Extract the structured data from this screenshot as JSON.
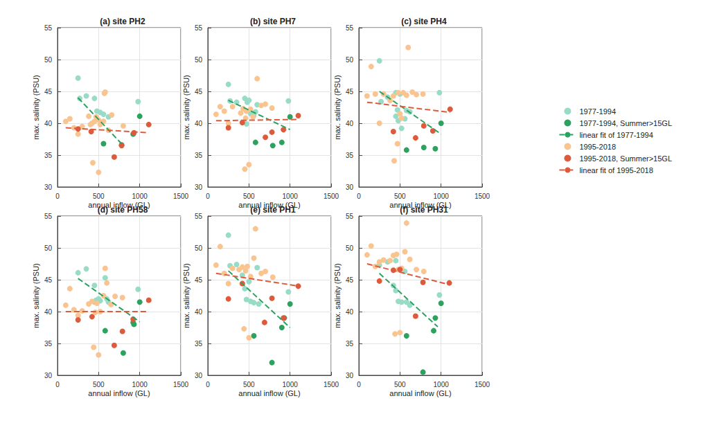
{
  "chart_data": [
    {
      "type": "scatter",
      "title": "(a) site PH2",
      "x_label": "annual inflow (GL)",
      "y_label": "max. salinity (PSU)",
      "xlim": [
        0,
        1500
      ],
      "ylim": [
        30,
        55
      ],
      "xticks": [
        0,
        500,
        1000,
        1500
      ],
      "yticks": [
        30,
        35,
        40,
        45,
        50,
        55
      ],
      "grid": true,
      "legend": "right",
      "series": [
        {
          "name": "1977-1994",
          "type": "scatter",
          "marker": "circle",
          "color": "#98dbc6",
          "x": [
            250,
            270,
            350,
            450,
            480,
            520,
            560,
            620,
            980
          ],
          "values": [
            47.1,
            43.9,
            44.3,
            43.9,
            41.9,
            41.7,
            41.4,
            41.0,
            43.4
          ]
        },
        {
          "name": "1977-1994, Summer>15GL",
          "type": "scatter",
          "marker": "circle",
          "color": "#2ca25f",
          "x": [
            560,
            780,
            920,
            1000
          ],
          "values": [
            36.8,
            36.6,
            38.3,
            41.1
          ]
        },
        {
          "name": "linear fit of 1977-1994",
          "type": "line",
          "line_style": "dashed",
          "color": "#2ca25f",
          "x": [
            250,
            800
          ],
          "values": [
            44.0,
            36.5
          ]
        },
        {
          "name": "1995-2018",
          "type": "scatter",
          "marker": "circle",
          "color": "#f9c48f",
          "x": [
            100,
            150,
            200,
            250,
            300,
            380,
            400,
            420,
            430,
            450,
            470,
            500,
            500,
            520,
            560,
            570,
            580,
            620,
            660,
            800
          ],
          "values": [
            40.3,
            40.7,
            39.3,
            38.3,
            39.5,
            41.1,
            39.8,
            40.0,
            33.8,
            40.3,
            41.0,
            40.5,
            32.3,
            39.8,
            40.3,
            44.7,
            44.9,
            38.9,
            41.3,
            39.6
          ]
        },
        {
          "name": "1995-2018, Summer>15GL",
          "type": "scatter",
          "marker": "circle",
          "color": "#de5a3c",
          "x": [
            250,
            410,
            690,
            780,
            930,
            1110
          ],
          "values": [
            39.1,
            38.7,
            34.7,
            36.5,
            38.5,
            39.8
          ]
        },
        {
          "name": "linear fit of 1995-2018",
          "type": "line",
          "line_style": "dashed",
          "color": "#de5a3c",
          "x": [
            100,
            1110
          ],
          "values": [
            39.3,
            38.5
          ]
        }
      ]
    },
    {
      "type": "scatter",
      "title": "(b) site PH7",
      "x_label": "annual inflow (GL)",
      "y_label": "max. salinity (PSU)",
      "xlim": [
        0,
        1500
      ],
      "ylim": [
        30,
        55
      ],
      "xticks": [
        0,
        500,
        1000,
        1500
      ],
      "yticks": [
        30,
        35,
        40,
        45,
        50,
        55
      ],
      "grid": true,
      "series": [
        {
          "name": "1977-1994",
          "type": "scatter",
          "marker": "circle",
          "color": "#98dbc6",
          "x": [
            250,
            270,
            350,
            450,
            470,
            480,
            500,
            520,
            560,
            580,
            600,
            980
          ],
          "values": [
            46.1,
            43.5,
            43.3,
            43.9,
            39.9,
            43.3,
            43.6,
            41.5,
            41.2,
            41.8,
            42.9,
            43.5
          ]
        },
        {
          "name": "1977-1994, Summer>15GL",
          "type": "scatter",
          "marker": "circle",
          "color": "#2ca25f",
          "x": [
            580,
            790,
            900,
            1000
          ],
          "values": [
            37.0,
            36.5,
            37.0,
            41.0
          ]
        },
        {
          "name": "linear fit of 1977-1994",
          "type": "line",
          "line_style": "dashed",
          "color": "#2ca25f",
          "x": [
            250,
            1000
          ],
          "values": [
            43.6,
            39.0
          ]
        },
        {
          "name": "1995-2018",
          "type": "scatter",
          "marker": "circle",
          "color": "#f9c48f",
          "x": [
            100,
            150,
            200,
            250,
            300,
            400,
            430,
            450,
            460,
            470,
            500,
            520,
            550,
            600,
            650,
            700,
            780
          ],
          "values": [
            41.4,
            42.6,
            41.9,
            40.0,
            42.6,
            41.6,
            42.3,
            32.8,
            40.8,
            41.9,
            33.5,
            42.2,
            41.0,
            47.0,
            42.8,
            43.0,
            42.4
          ]
        },
        {
          "name": "1995-2018, Summer>15GL",
          "type": "scatter",
          "marker": "circle",
          "color": "#de5a3c",
          "x": [
            250,
            420,
            700,
            780,
            920,
            1100
          ],
          "values": [
            39.3,
            40.1,
            37.8,
            38.6,
            39.0,
            41.2
          ]
        },
        {
          "name": "linear fit of 1995-2018",
          "type": "line",
          "line_style": "dashed",
          "color": "#de5a3c",
          "x": [
            100,
            1110
          ],
          "values": [
            40.4,
            40.6
          ]
        }
      ]
    },
    {
      "type": "scatter",
      "title": "(c) site PH4",
      "x_label": "annual inflow (GL)",
      "y_label": "max. salinity (PSU)",
      "xlim": [
        0,
        1500
      ],
      "ylim": [
        30,
        55
      ],
      "xticks": [
        0,
        500,
        1000,
        1500
      ],
      "yticks": [
        30,
        35,
        40,
        45,
        50,
        55
      ],
      "grid": true,
      "series": [
        {
          "name": "1977-1994",
          "type": "scatter",
          "marker": "circle",
          "color": "#98dbc6",
          "x": [
            250,
            270,
            350,
            450,
            450,
            470,
            480,
            500,
            520,
            560,
            580,
            620,
            980
          ],
          "values": [
            49.8,
            43.4,
            44.1,
            44.8,
            41.1,
            42.1,
            40.4,
            44.6,
            39.2,
            40.7,
            42.0,
            41.8,
            44.8
          ]
        },
        {
          "name": "1977-1994, Summer>15GL",
          "type": "scatter",
          "marker": "circle",
          "color": "#2ca25f",
          "x": [
            580,
            790,
            930,
            1000
          ],
          "values": [
            35.8,
            36.2,
            36.0,
            40.0
          ]
        },
        {
          "name": "linear fit of 1977-1994",
          "type": "line",
          "line_style": "dashed",
          "color": "#2ca25f",
          "x": [
            250,
            1000
          ],
          "values": [
            45.0,
            38.3
          ]
        },
        {
          "name": "1995-2018",
          "type": "scatter",
          "marker": "circle",
          "color": "#f9c48f",
          "x": [
            100,
            150,
            200,
            250,
            300,
            380,
            420,
            430,
            470,
            480,
            500,
            520,
            540,
            580,
            600,
            650,
            700,
            780
          ],
          "values": [
            44.3,
            48.9,
            44.6,
            40.0,
            44.6,
            43.6,
            44.3,
            34.1,
            36.8,
            44.8,
            41.5,
            40.8,
            44.8,
            44.4,
            51.9,
            44.9,
            44.5,
            44.6
          ]
        },
        {
          "name": "1995-2018, Summer>15GL",
          "type": "scatter",
          "marker": "circle",
          "color": "#de5a3c",
          "x": [
            420,
            690,
            790,
            900,
            1110
          ],
          "values": [
            38.7,
            37.7,
            39.6,
            38.8,
            42.2
          ]
        },
        {
          "name": "linear fit of 1995-2018",
          "type": "line",
          "line_style": "dashed",
          "color": "#de5a3c",
          "x": [
            100,
            1110
          ],
          "values": [
            43.3,
            41.7
          ]
        }
      ]
    },
    {
      "type": "scatter",
      "title": "(d) site PH58",
      "x_label": "annual inflow (GL)",
      "y_label": "max. salinity (PSU)",
      "xlim": [
        0,
        1500
      ],
      "ylim": [
        30,
        55
      ],
      "xticks": [
        0,
        500,
        1000,
        1500
      ],
      "yticks": [
        30,
        35,
        40,
        45,
        50,
        55
      ],
      "grid": true,
      "series": [
        {
          "name": "1977-1994",
          "type": "scatter",
          "marker": "circle",
          "color": "#98dbc6",
          "x": [
            250,
            350,
            450,
            450,
            470,
            500,
            520,
            580,
            600,
            620,
            980
          ],
          "values": [
            46.1,
            46.7,
            44.1,
            41.5,
            41.8,
            42.0,
            41.7,
            45.3,
            42.0,
            41.5,
            43.5
          ]
        },
        {
          "name": "1977-1994, Summer>15GL",
          "type": "scatter",
          "marker": "circle",
          "color": "#2ca25f",
          "x": [
            580,
            800,
            920,
            930,
            1000
          ],
          "values": [
            37.0,
            33.5,
            38.3,
            38.0,
            41.5
          ]
        },
        {
          "name": "linear fit of 1977-1994",
          "type": "line",
          "line_style": "dashed",
          "color": "#2ca25f",
          "x": [
            250,
            1000
          ],
          "values": [
            45.2,
            38.4
          ]
        },
        {
          "name": "1995-2018",
          "type": "scatter",
          "marker": "circle",
          "color": "#f9c48f",
          "x": [
            100,
            150,
            200,
            250,
            300,
            380,
            420,
            440,
            460,
            480,
            500,
            520,
            560,
            580,
            600,
            650,
            700,
            790
          ],
          "values": [
            41.0,
            43.6,
            40.3,
            39.4,
            40.1,
            41.2,
            41.6,
            34.4,
            39.9,
            41.3,
            33.2,
            40.0,
            42.5,
            46.8,
            44.5,
            41.1,
            42.4,
            42.2
          ]
        },
        {
          "name": "1995-2018, Summer>15GL",
          "type": "scatter",
          "marker": "circle",
          "color": "#de5a3c",
          "x": [
            250,
            420,
            690,
            790,
            920,
            1110
          ],
          "values": [
            38.7,
            39.2,
            34.7,
            36.9,
            38.8,
            41.8
          ]
        },
        {
          "name": "linear fit of 1995-2018",
          "type": "line",
          "line_style": "dashed",
          "color": "#de5a3c",
          "x": [
            100,
            1110
          ],
          "values": [
            40.0,
            40.0
          ]
        }
      ]
    },
    {
      "type": "scatter",
      "title": "(e) site PH1",
      "x_label": "annual inflow (GL)",
      "y_label": "max. salinity (PSU)",
      "xlim": [
        0,
        1500
      ],
      "ylim": [
        30,
        55
      ],
      "xticks": [
        0,
        500,
        1000,
        1500
      ],
      "yticks": [
        30,
        35,
        40,
        45,
        50,
        55
      ],
      "grid": true,
      "series": [
        {
          "name": "1977-1994",
          "type": "scatter",
          "marker": "circle",
          "color": "#98dbc6",
          "x": [
            250,
            270,
            350,
            420,
            450,
            470,
            500,
            520,
            560,
            600,
            620,
            980
          ],
          "values": [
            52.0,
            47.2,
            47.4,
            45.7,
            43.6,
            41.9,
            44.7,
            41.6,
            41.4,
            46.9,
            41.2,
            43.1
          ]
        },
        {
          "name": "1977-1994, Summer>15GL",
          "type": "scatter",
          "marker": "circle",
          "color": "#2ca25f",
          "x": [
            560,
            780,
            900,
            930,
            1000
          ],
          "values": [
            36.2,
            32.0,
            37.5,
            39.0,
            41.2
          ]
        },
        {
          "name": "linear fit of 1977-1994",
          "type": "line",
          "line_style": "dashed",
          "color": "#2ca25f",
          "x": [
            250,
            1000
          ],
          "values": [
            46.4,
            37.5
          ]
        },
        {
          "name": "1995-2018",
          "type": "scatter",
          "marker": "circle",
          "color": "#f9c48f",
          "x": [
            100,
            150,
            200,
            250,
            300,
            380,
            420,
            440,
            460,
            480,
            500,
            520,
            560,
            580,
            650,
            700,
            790
          ],
          "values": [
            47.3,
            50.2,
            46.0,
            44.4,
            46.8,
            46.6,
            47.0,
            37.3,
            46.4,
            47.1,
            35.9,
            45.5,
            48.4,
            53.0,
            46.0,
            46.3,
            45.4
          ]
        },
        {
          "name": "1995-2018, Summer>15GL",
          "type": "scatter",
          "marker": "circle",
          "color": "#de5a3c",
          "x": [
            250,
            420,
            690,
            780,
            920,
            1100
          ],
          "values": [
            42.0,
            44.4,
            38.3,
            42.1,
            39.0,
            44.0
          ]
        },
        {
          "name": "linear fit of 1995-2018",
          "type": "line",
          "line_style": "dashed",
          "color": "#de5a3c",
          "x": [
            100,
            1110
          ],
          "values": [
            46.0,
            44.0
          ]
        }
      ]
    },
    {
      "type": "scatter",
      "title": "(f) site PH31",
      "x_label": "annual inflow (GL)",
      "y_label": "max. salinity (PSU)",
      "xlim": [
        0,
        1500
      ],
      "ylim": [
        30,
        55
      ],
      "xticks": [
        0,
        500,
        1000,
        1500
      ],
      "yticks": [
        30,
        35,
        40,
        45,
        50,
        55
      ],
      "grid": true,
      "series": [
        {
          "name": "1977-1994",
          "type": "scatter",
          "marker": "circle",
          "color": "#98dbc6",
          "x": [
            250,
            350,
            420,
            450,
            450,
            480,
            520,
            560,
            580,
            620,
            980
          ],
          "values": [
            47.3,
            47.8,
            44.1,
            43.3,
            48.0,
            41.6,
            41.5,
            46.3,
            41.5,
            41.0,
            42.6
          ]
        },
        {
          "name": "1977-1994, Summer>15GL",
          "type": "scatter",
          "marker": "circle",
          "color": "#2ca25f",
          "x": [
            580,
            780,
            910,
            930,
            1000
          ],
          "values": [
            36.2,
            30.5,
            37.0,
            39.0,
            41.3
          ]
        },
        {
          "name": "linear fit of 1977-1994",
          "type": "line",
          "line_style": "dashed",
          "color": "#2ca25f",
          "x": [
            250,
            960
          ],
          "values": [
            46.0,
            37.6
          ]
        },
        {
          "name": "1995-2018",
          "type": "scatter",
          "marker": "circle",
          "color": "#f9c48f",
          "x": [
            100,
            150,
            200,
            250,
            300,
            380,
            420,
            440,
            460,
            480,
            500,
            520,
            560,
            580,
            620,
            700,
            790
          ],
          "values": [
            48.9,
            50.3,
            47.1,
            47.8,
            48.1,
            48.0,
            48.8,
            36.5,
            49.0,
            46.6,
            36.7,
            46.8,
            49.4,
            53.9,
            48.2,
            46.6,
            46.3
          ]
        },
        {
          "name": "1995-2018, Summer>15GL",
          "type": "scatter",
          "marker": "circle",
          "color": "#de5a3c",
          "x": [
            250,
            420,
            500,
            690,
            780,
            1100
          ],
          "values": [
            44.8,
            46.5,
            46.6,
            39.3,
            44.6,
            44.5
          ]
        },
        {
          "name": "linear fit of 1995-2018",
          "type": "line",
          "line_style": "dashed",
          "color": "#de5a3c",
          "x": [
            100,
            1110
          ],
          "values": [
            47.5,
            44.2
          ]
        }
      ]
    }
  ]
}
